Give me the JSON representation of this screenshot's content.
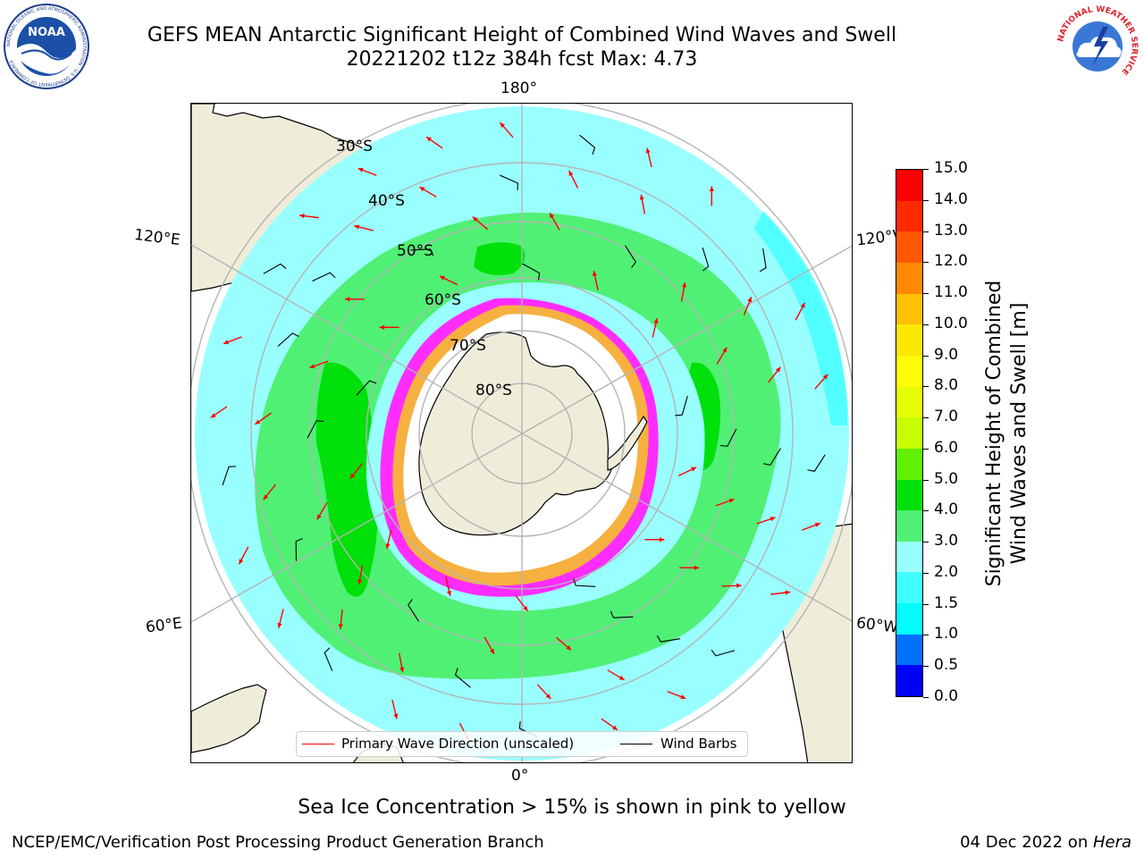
{
  "header": {
    "title_line1": "GEFS MEAN Antarctic Significant Height of Combined Wind Waves and Swell",
    "title_line2": "20221202 t12z 384h fcst   Max: 4.73"
  },
  "logos": {
    "left": {
      "icon": "noaa-logo-icon",
      "text": "NOAA",
      "ring_text": "NATIONAL OCEANIC AND ATMOSPHERIC ADMINISTRATION · U.S. DEPARTMENT OF COMMERCE"
    },
    "right": {
      "icon": "nws-logo-icon",
      "ring_text": "NATIONAL WEATHER SERVICE"
    }
  },
  "map": {
    "projection": "south-polar-stereographic",
    "lon_labels": {
      "top": "180°",
      "bottom": "0°",
      "left_upper": "120°E",
      "left_lower": "60°E",
      "right_upper": "120°W",
      "right_lower": "60°W"
    },
    "lat_labels": [
      "30°S",
      "40°S",
      "50°S",
      "60°S",
      "70°S",
      "80°S"
    ],
    "colors": {
      "land": "#efedda",
      "ocean_low": "#99fffe",
      "coast_strip": "#40ffff",
      "band_3_4": "#50f075",
      "band_4_5": "#00e00a",
      "sea_ice_white": "#ffffff",
      "ice_pink": "#ff2cff",
      "ice_orange": "#f6b040",
      "ice_blue": "#4090ff",
      "arrow": "#ff0000",
      "barb": "#000000",
      "grid": "#b4b4b4"
    }
  },
  "legend": {
    "items": [
      {
        "label": "Primary Wave Direction (unscaled)",
        "color": "#ff0000"
      },
      {
        "label": "Wind Barbs",
        "color": "#000000"
      }
    ]
  },
  "colorbar": {
    "label_line1": "Significant Height of Combined",
    "label_line2": "Wind Waves and Swell [m]",
    "ticks": [
      "0.0",
      "0.5",
      "1.0",
      "1.5",
      "2.0",
      "3.0",
      "4.0",
      "5.0",
      "6.0",
      "7.0",
      "8.0",
      "9.0",
      "10.0",
      "11.0",
      "12.0",
      "13.0",
      "14.0",
      "15.0"
    ],
    "colors": [
      "#0000ff",
      "#0070ff",
      "#00ffff",
      "#40ffff",
      "#99fffe",
      "#50f075",
      "#00e00a",
      "#60f000",
      "#c8ff00",
      "#e8ff00",
      "#ffff00",
      "#ffe800",
      "#ffc000",
      "#ff8a00",
      "#ff5800",
      "#ff2a00",
      "#ff0000"
    ]
  },
  "footer": {
    "note": "Sea Ice Concentration > 15% is shown in pink to yellow",
    "credit_left": "NCEP/EMC/Verification Post Processing Product Generation Branch",
    "credit_date": "04 Dec 2022 on ",
    "credit_host": "Hera"
  }
}
